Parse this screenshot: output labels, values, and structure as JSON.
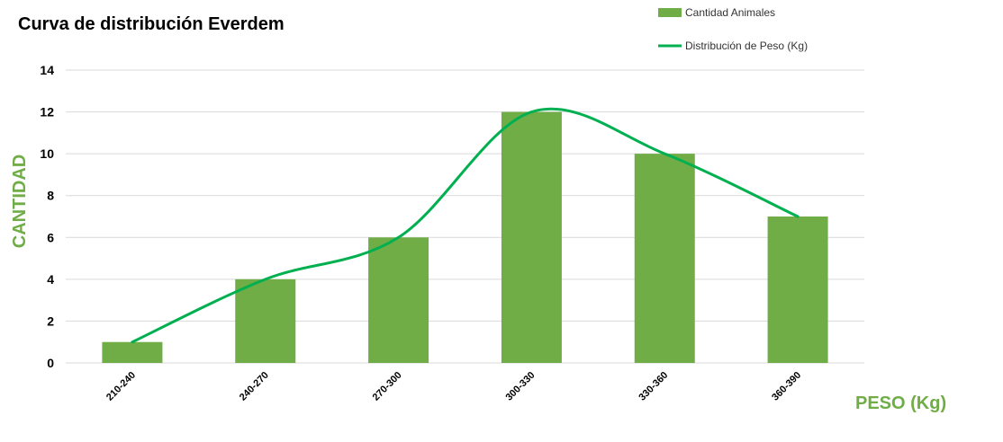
{
  "chart_data": {
    "type": "bar",
    "title": "Curva de distribución Everdem",
    "xlabel": "PESO (Kg)",
    "ylabel": "CANTIDAD",
    "categories": [
      "210-240",
      "240-270",
      "270-300",
      "300-330",
      "330-360",
      "360-390"
    ],
    "series": [
      {
        "name": "Cantidad Animales",
        "type": "bar",
        "values": [
          1,
          4,
          6,
          12,
          10,
          7
        ],
        "color": "#70ad47"
      },
      {
        "name": "Distribución de Peso (Kg)",
        "type": "line",
        "smooth": true,
        "values": [
          1,
          4,
          6,
          12,
          10,
          7
        ],
        "color": "#00b050"
      }
    ],
    "ylim": [
      0,
      14
    ],
    "yticks": [
      0,
      2,
      4,
      6,
      8,
      10,
      12,
      14
    ],
    "grid": true,
    "legend_position": "top-right",
    "axis_label_color": "#70ad47"
  }
}
